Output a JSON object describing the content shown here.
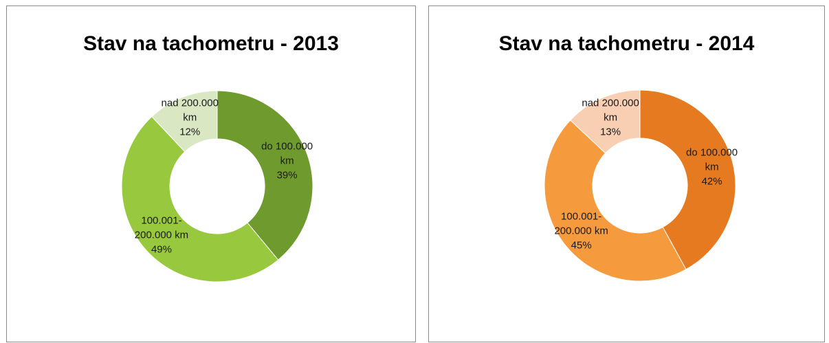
{
  "chart_data": [
    {
      "type": "pie",
      "title": "Stav na tachometru - 2013",
      "hole": true,
      "categories": [
        "do 100.000 km",
        "100.001-200.000 km",
        "nad 200.000 km"
      ],
      "values": [
        39,
        49,
        12
      ],
      "value_labels": [
        "39%",
        "49%",
        "12%"
      ],
      "colors": [
        "#6f9a2e",
        "#98c83d",
        "#d9e8c3"
      ]
    },
    {
      "type": "pie",
      "title": "Stav na tachometru - 2014",
      "hole": true,
      "categories": [
        "do 100.000 km",
        "100.001-200.000 km",
        "nad 200.000 km"
      ],
      "values": [
        42,
        45,
        13
      ],
      "value_labels": [
        "42%",
        "45%",
        "13%"
      ],
      "colors": [
        "#e57a20",
        "#f59b3e",
        "#f8cfb3"
      ]
    }
  ]
}
